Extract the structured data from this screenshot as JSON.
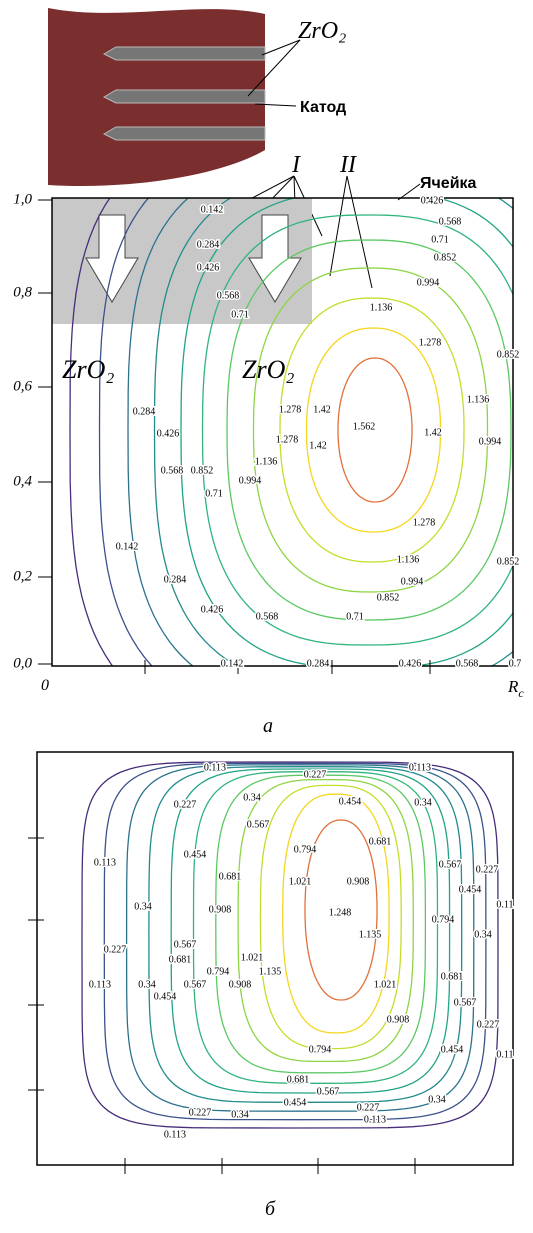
{
  "panel_a": {
    "inset": {
      "material": "ZrO₂",
      "cathode": "Катод",
      "cell": "Ячейка",
      "zone_1": "I",
      "zone_2": "II"
    },
    "zone_labels": [
      "ZrO₂",
      "ZrO₂"
    ],
    "y_ticks": [
      "1,0",
      "0,8",
      "0,6",
      "0,4",
      "0,2",
      "0,0"
    ],
    "x_origin": "0",
    "x_end": {
      "base": "R",
      "sub": "c"
    },
    "contour_labels": [
      0.426,
      0.142,
      0.568,
      0.284,
      0.71,
      0.426,
      0.852,
      0.994,
      0.568,
      1.136,
      0.71,
      1.278,
      0.852,
      1.278,
      1.42,
      1.562,
      1.42,
      1.136,
      0.994,
      1.278,
      1.42,
      1.136,
      0.284,
      0.426,
      0.568,
      0.852,
      0.994,
      0.71,
      1.278,
      0.142,
      1.136,
      0.852,
      0.284,
      0.994,
      0.852,
      0.426,
      0.568,
      0.71,
      0.142,
      0.284,
      0.426,
      0.568,
      0.7
    ],
    "caption": "а"
  },
  "panel_b": {
    "contour_labels": [
      0.113,
      0.227,
      0.113,
      0.227,
      0.34,
      0.454,
      0.34,
      0.567,
      0.681,
      0.113,
      0.454,
      0.794,
      0.567,
      0.227,
      0.681,
      1.021,
      0.908,
      0.11,
      0.454,
      0.34,
      0.908,
      1.135,
      0.794,
      1.248,
      0.34,
      0.227,
      0.567,
      0.681,
      1.021,
      0.794,
      1.135,
      0.113,
      0.34,
      0.454,
      0.567,
      0.908,
      0.681,
      1.021,
      0.567,
      0.908,
      0.227,
      0.794,
      0.454,
      0.11,
      0.681,
      0.567,
      0.454,
      0.34,
      0.227,
      0.34,
      0.227,
      0.113,
      0.113
    ],
    "caption": "б"
  }
}
